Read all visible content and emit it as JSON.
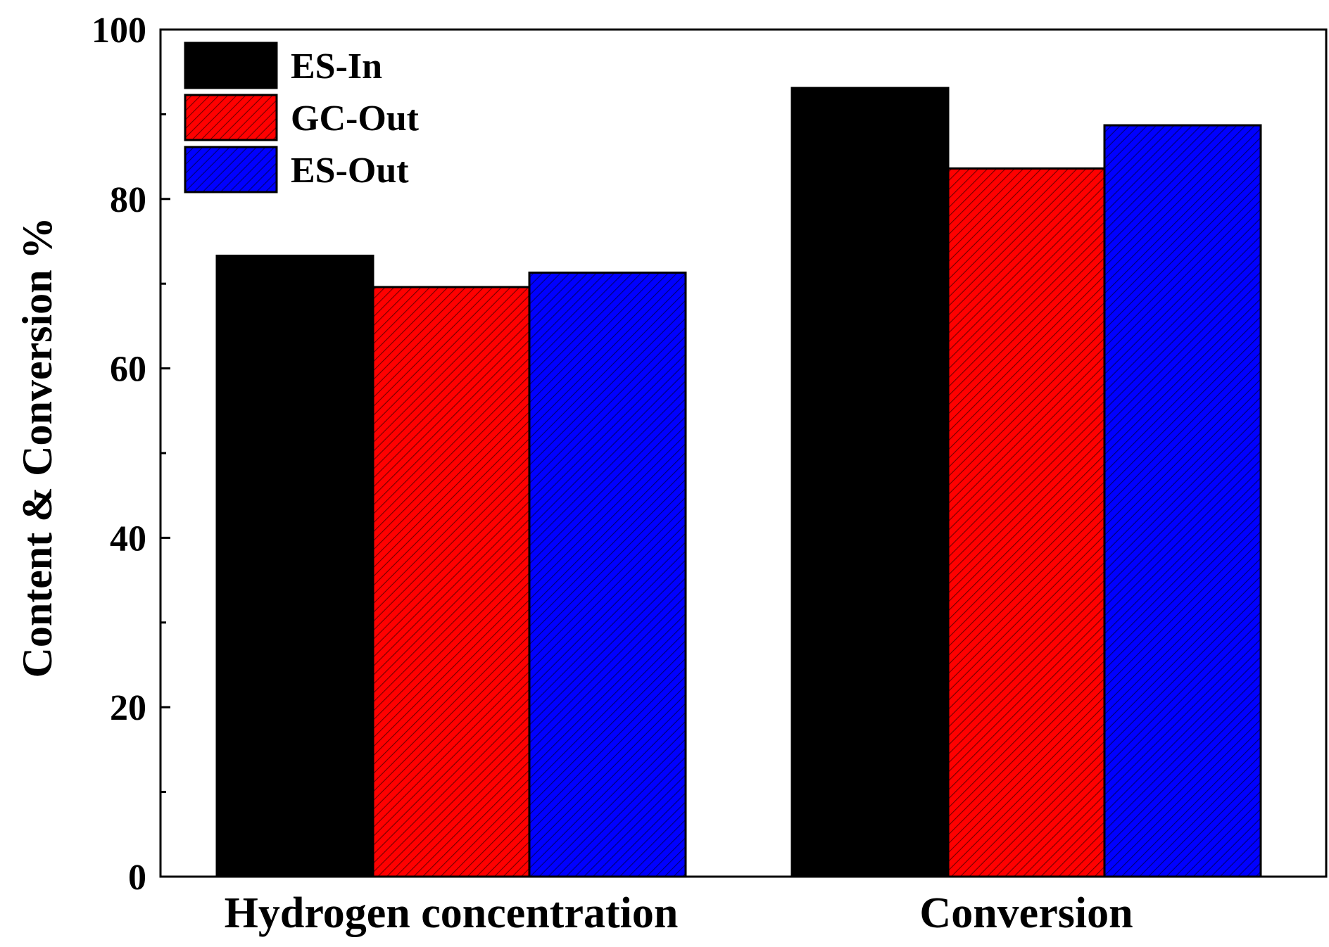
{
  "chart_data": {
    "type": "bar",
    "title": "",
    "xlabel": "",
    "ylabel": "Content & Conversion %",
    "ylim": [
      0,
      100
    ],
    "yticks": [
      0,
      20,
      40,
      60,
      80,
      100
    ],
    "yticks_minor": [
      10,
      30,
      50,
      70,
      90
    ],
    "grid": false,
    "legend_position": "top-left",
    "categories": [
      "Hydrogen concentration",
      "Conversion"
    ],
    "series": [
      {
        "name": "ES-In",
        "values": [
          73.3,
          93.1
        ],
        "color": "#000000",
        "hatch": false
      },
      {
        "name": "GC-Out",
        "values": [
          69.6,
          83.6
        ],
        "color": "#ff0000",
        "hatch": true
      },
      {
        "name": "ES-Out",
        "values": [
          71.3,
          88.7
        ],
        "color": "#0000ff",
        "hatch": true
      }
    ]
  }
}
